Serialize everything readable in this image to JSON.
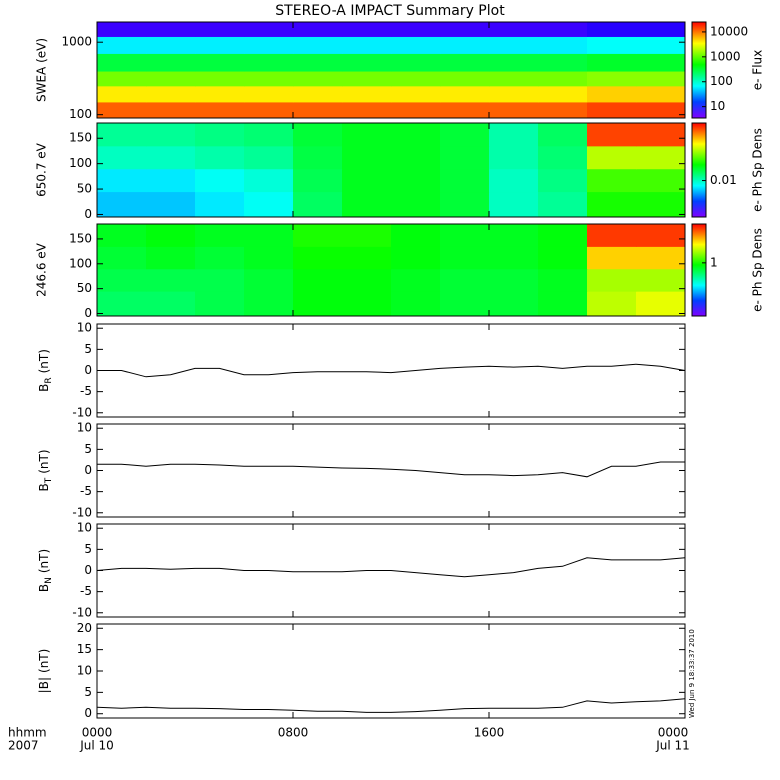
{
  "title": "STEREO-A IMPACT Summary Plot",
  "xaxis": {
    "xlim": [
      0,
      24
    ],
    "xticks": [
      {
        "value": 0,
        "label": "0000"
      },
      {
        "value": 8,
        "label": "0800"
      },
      {
        "value": 16,
        "label": "1600"
      },
      {
        "value": 24,
        "label": "0000"
      }
    ],
    "date_ticks": [
      {
        "value": 0,
        "label": "Jul 10"
      },
      {
        "value": 24,
        "label": "Jul 11"
      }
    ],
    "corner_label": [
      "hhmm",
      "2007"
    ],
    "stamp": "Wed Jun  9 18:33:37 2010"
  },
  "chart_data": [
    {
      "type": "heatmap",
      "ylabel": "SWEA (eV)",
      "clabel": "e- Flux",
      "log_y": true,
      "ylim": [
        90,
        1900
      ],
      "yticks": [
        100,
        1000
      ],
      "xbins": [
        0,
        2,
        4,
        6,
        8,
        10,
        12,
        14,
        16,
        18,
        20,
        22,
        24
      ],
      "ybins": [
        90,
        150,
        250,
        400,
        700,
        1200,
        1900
      ],
      "clim": [
        3.5,
        25000
      ],
      "cticks": [
        10,
        100,
        1000,
        10000
      ],
      "values": [
        [
          12000,
          12000,
          12000,
          12000,
          12000,
          12000,
          12000,
          12000,
          12000,
          12000,
          15000,
          15000
        ],
        [
          4000,
          4000,
          4000,
          4000,
          4000,
          4000,
          4000,
          4000,
          4000,
          4000,
          5000,
          5000
        ],
        [
          1200,
          1200,
          1200,
          1200,
          1200,
          1200,
          1200,
          1200,
          1200,
          1200,
          1400,
          1400
        ],
        [
          300,
          300,
          300,
          300,
          300,
          300,
          300,
          300,
          300,
          300,
          350,
          350
        ],
        [
          60,
          60,
          60,
          60,
          60,
          60,
          60,
          60,
          60,
          60,
          70,
          70
        ],
        [
          6,
          6,
          6,
          6,
          6,
          6,
          6,
          6,
          6,
          6,
          7,
          7
        ]
      ]
    },
    {
      "type": "heatmap",
      "ylabel": "650.7 eV",
      "clabel": "e- Ph Sp Dens",
      "log_y": false,
      "ylim": [
        -5,
        180
      ],
      "yticks": [
        0,
        50,
        100,
        150
      ],
      "xbins": [
        0,
        2,
        4,
        6,
        8,
        10,
        12,
        14,
        16,
        18,
        20,
        22,
        24
      ],
      "ybins": [
        -5,
        45,
        90,
        135,
        180
      ],
      "clim": [
        0.0015,
        0.2
      ],
      "cticks": [
        0.01
      ],
      "values": [
        [
          0.006,
          0.006,
          0.007,
          0.008,
          0.015,
          0.02,
          0.02,
          0.018,
          0.01,
          0.012,
          0.025,
          0.025
        ],
        [
          0.007,
          0.007,
          0.008,
          0.009,
          0.016,
          0.02,
          0.02,
          0.018,
          0.01,
          0.013,
          0.03,
          0.03
        ],
        [
          0.01,
          0.01,
          0.011,
          0.012,
          0.017,
          0.02,
          0.02,
          0.018,
          0.011,
          0.014,
          0.05,
          0.05
        ],
        [
          0.012,
          0.012,
          0.013,
          0.014,
          0.018,
          0.02,
          0.02,
          0.018,
          0.011,
          0.015,
          0.15,
          0.15
        ]
      ]
    },
    {
      "type": "heatmap",
      "ylabel": "246.6 eV",
      "clabel": "e- Ph Sp Dens",
      "log_y": false,
      "ylim": [
        -5,
        180
      ],
      "yticks": [
        0,
        50,
        100,
        150
      ],
      "xbins": [
        0,
        2,
        4,
        6,
        8,
        10,
        12,
        14,
        16,
        18,
        20,
        22,
        24
      ],
      "ybins": [
        -5,
        45,
        90,
        135,
        180
      ],
      "clim": [
        0.15,
        4
      ],
      "cticks": [
        1
      ],
      "values": [
        [
          0.7,
          0.7,
          0.75,
          0.8,
          0.9,
          0.9,
          0.85,
          0.8,
          0.8,
          0.85,
          1.6,
          1.8
        ],
        [
          0.75,
          0.75,
          0.75,
          0.8,
          0.9,
          0.9,
          0.85,
          0.8,
          0.8,
          0.85,
          1.5,
          1.5
        ],
        [
          0.8,
          0.85,
          0.8,
          0.85,
          0.95,
          0.95,
          0.9,
          0.85,
          0.85,
          0.9,
          2.2,
          2.2
        ],
        [
          0.85,
          0.9,
          0.85,
          0.85,
          1.0,
          1.0,
          0.9,
          0.85,
          0.85,
          0.9,
          3.4,
          3.4
        ]
      ]
    },
    {
      "type": "line",
      "ylabel": {
        "main": "B",
        "sub": "R",
        "unit": "(nT)"
      },
      "color": "#000000",
      "ylim": [
        -11,
        11
      ],
      "yticks": [
        -10,
        -5,
        0,
        5,
        10
      ],
      "x": [
        0,
        1,
        2,
        3,
        4,
        5,
        6,
        7,
        8,
        9,
        10,
        11,
        12,
        13,
        14,
        15,
        16,
        17,
        18,
        19,
        20,
        21,
        22,
        23,
        24
      ],
      "values": [
        0,
        0,
        -1.5,
        -1,
        0.5,
        0.5,
        -1,
        -1,
        -0.5,
        -0.3,
        -0.3,
        -0.3,
        -0.5,
        0,
        0.5,
        0.8,
        1,
        0.8,
        1,
        0.5,
        1,
        1,
        1.5,
        1,
        0
      ]
    },
    {
      "type": "line",
      "ylabel": {
        "main": "B",
        "sub": "T",
        "unit": "(nT)"
      },
      "color": "#000000",
      "ylim": [
        -11,
        11
      ],
      "yticks": [
        -10,
        -5,
        0,
        5,
        10
      ],
      "x": [
        0,
        1,
        2,
        3,
        4,
        5,
        6,
        7,
        8,
        9,
        10,
        11,
        12,
        13,
        14,
        15,
        16,
        17,
        18,
        19,
        20,
        21,
        22,
        23,
        24
      ],
      "values": [
        1.5,
        1.5,
        1,
        1.5,
        1.5,
        1.3,
        1,
        1,
        1,
        0.8,
        0.6,
        0.5,
        0.3,
        0,
        -0.5,
        -1,
        -1,
        -1.2,
        -1,
        -0.5,
        -1.5,
        1,
        1,
        2,
        2
      ]
    },
    {
      "type": "line",
      "ylabel": {
        "main": "B",
        "sub": "N",
        "unit": "(nT)"
      },
      "color": "#000000",
      "ylim": [
        -11,
        11
      ],
      "yticks": [
        -10,
        -5,
        0,
        5,
        10
      ],
      "x": [
        0,
        1,
        2,
        3,
        4,
        5,
        6,
        7,
        8,
        9,
        10,
        11,
        12,
        13,
        14,
        15,
        16,
        17,
        18,
        19,
        20,
        21,
        22,
        23,
        24
      ],
      "values": [
        0,
        0.5,
        0.5,
        0.3,
        0.5,
        0.5,
        0,
        0,
        -0.3,
        -0.3,
        -0.3,
        0,
        0,
        -0.5,
        -1,
        -1.5,
        -1,
        -0.5,
        0.5,
        1,
        3,
        2.5,
        2.5,
        2.5,
        3
      ]
    },
    {
      "type": "line",
      "ylabel": {
        "main": "|B|",
        "unit": "(nT)"
      },
      "color": "#000000",
      "ylim": [
        -1,
        21
      ],
      "yticks": [
        0,
        5,
        10,
        15,
        20
      ],
      "x": [
        0,
        1,
        2,
        3,
        4,
        5,
        6,
        7,
        8,
        9,
        10,
        11,
        12,
        13,
        14,
        15,
        16,
        17,
        18,
        19,
        20,
        21,
        22,
        23,
        24
      ],
      "values": [
        1.5,
        1.3,
        1.5,
        1.3,
        1.3,
        1.2,
        1,
        1,
        0.8,
        0.6,
        0.6,
        0.3,
        0.3,
        0.5,
        0.8,
        1.2,
        1.3,
        1.3,
        1.3,
        1.5,
        3,
        2.5,
        2.8,
        3,
        3.5
      ]
    }
  ]
}
